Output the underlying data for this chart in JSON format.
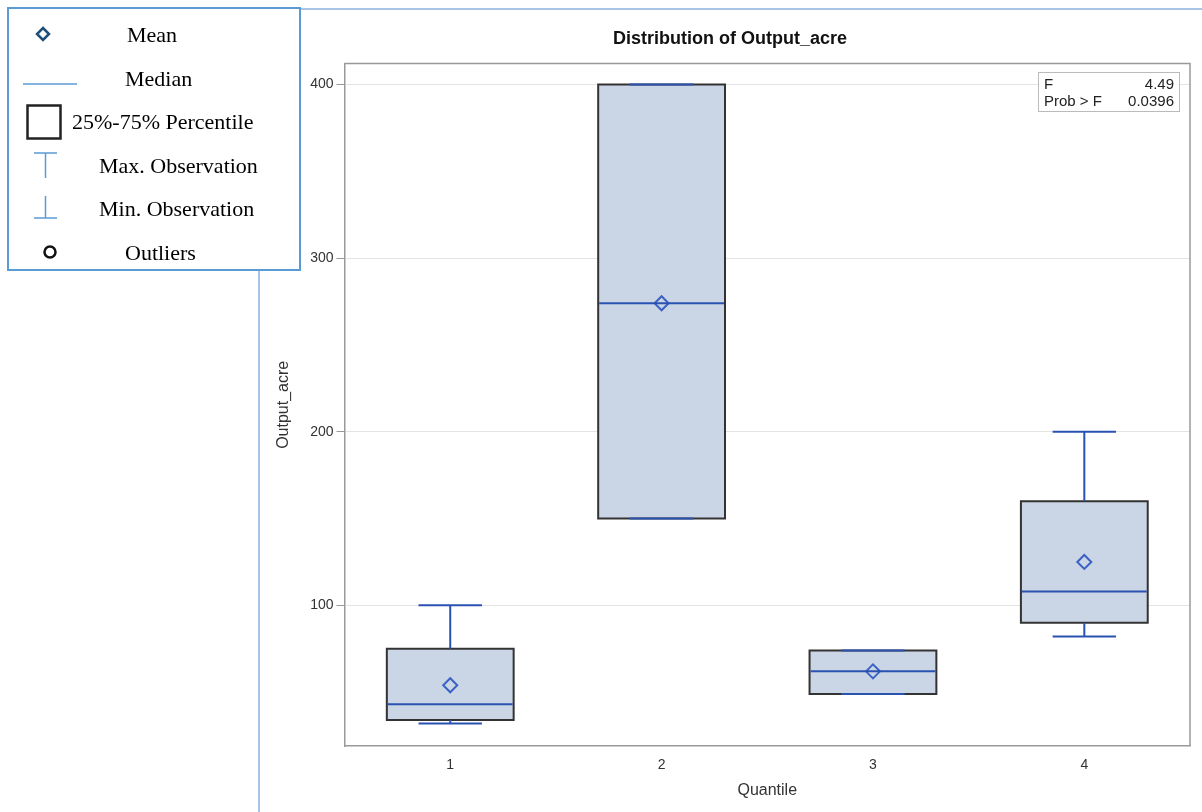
{
  "chart_data": {
    "type": "box",
    "title": "Distribution of Output_acre",
    "xlabel": "Quantile",
    "ylabel": "Output_acre",
    "categories": [
      "1",
      "2",
      "3",
      "4"
    ],
    "boxes": [
      {
        "low": 32,
        "q1": 34,
        "median": 43,
        "q3": 75,
        "high": 100,
        "mean": 54
      },
      {
        "low": 150,
        "q1": 150,
        "median": 274,
        "q3": 400,
        "high": 400,
        "mean": 274
      },
      {
        "low": 49,
        "q1": 49,
        "median": 62,
        "q3": 74,
        "high": 74,
        "mean": 62
      },
      {
        "low": 82,
        "q1": 90,
        "median": 108,
        "q3": 160,
        "high": 200,
        "mean": 125
      }
    ],
    "color": "#cad5e5",
    "ylim": [
      19,
      412
    ],
    "yticks": [
      100,
      200,
      300,
      400
    ],
    "grid": "y",
    "marker": "diamond",
    "annotations": [
      "Mean",
      "Median",
      "25%-75% Percentile",
      "Max. Observation",
      "Min. Observation",
      "Outliers",
      "F",
      "4.49",
      "Prob > F",
      "0.0396"
    ]
  }
}
